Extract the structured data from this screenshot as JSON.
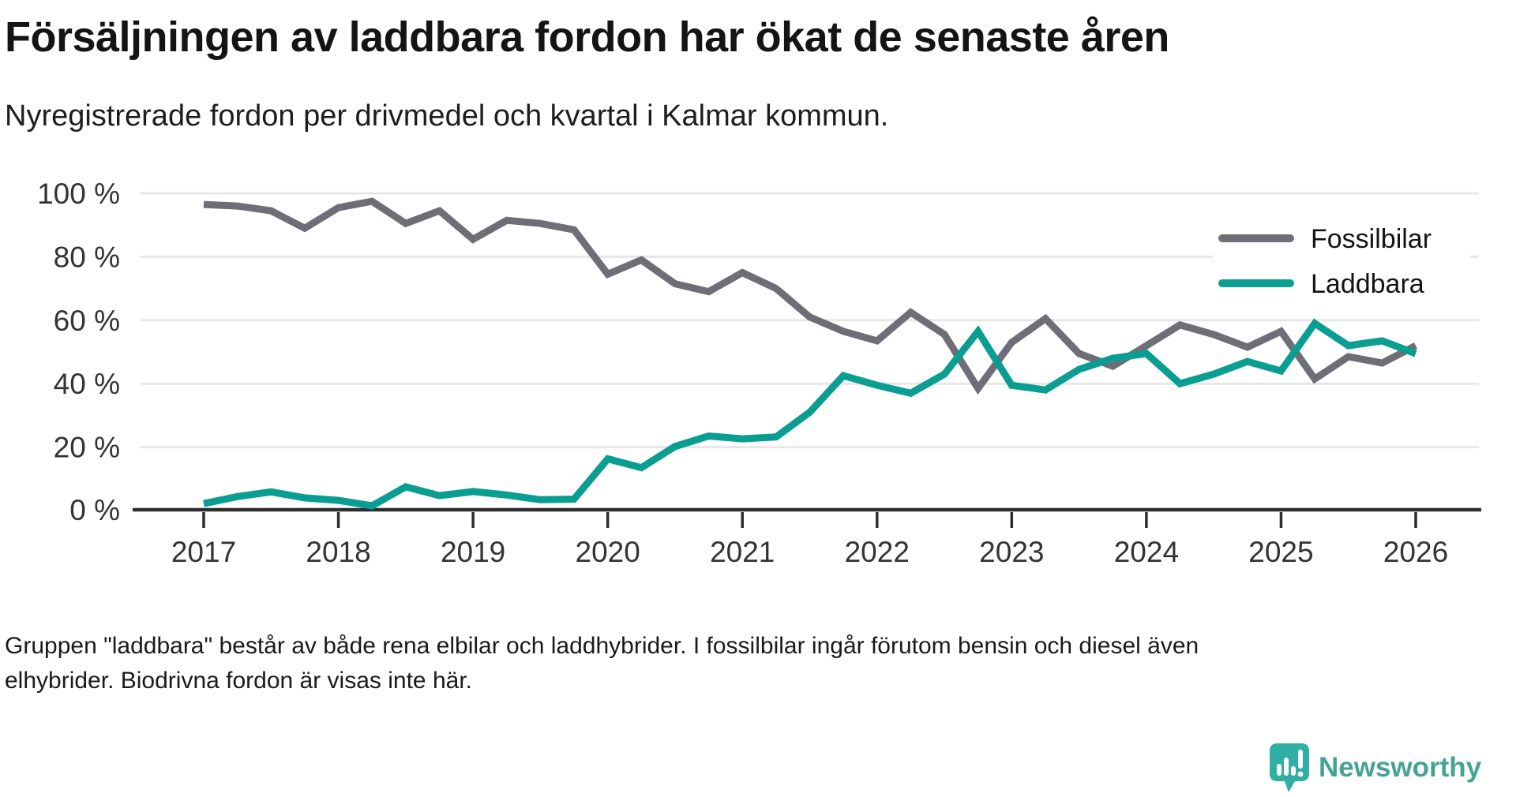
{
  "header": {
    "title": "Försäljningen av laddbara fordon har ökat de senaste åren",
    "subtitle": "Nyregistrerade fordon per drivmedel och kvartal i Kalmar kommun."
  },
  "footnote": {
    "line1": "Gruppen \"laddbara\" består av både rena elbilar och laddhybrider. I fossilbilar ingår förutom bensin och diesel även",
    "line2": "elhybrider. Biodrivna fordon är visas inte här."
  },
  "logo": {
    "text": "Newsworthy",
    "text_color": "#46a295",
    "mark_color": "#2fb0a3"
  },
  "chart_data": {
    "type": "line",
    "unit": "%",
    "title": "Försäljningen av laddbara fordon har ökat de senaste åren",
    "subtitle": "Nyregistrerade fordon per drivmedel och kvartal i Kalmar kommun.",
    "ylim": [
      0,
      100
    ],
    "grid": true,
    "legend_position": "top-right",
    "y_ticks": [
      {
        "label": "100 %",
        "value": 100
      },
      {
        "label": "80 %",
        "value": 80
      },
      {
        "label": "60 %",
        "value": 60
      },
      {
        "label": "40 %",
        "value": 40
      },
      {
        "label": "20 %",
        "value": 20
      },
      {
        "label": "0 %",
        "value": 0
      }
    ],
    "x_ticks": [
      "2017",
      "2018",
      "2019",
      "2020",
      "2021",
      "2022",
      "2023",
      "2024",
      "2025",
      "2026"
    ],
    "x_categories": [
      "2017 Q1",
      "2017 Q2",
      "2017 Q3",
      "2017 Q4",
      "2018 Q1",
      "2018 Q2",
      "2018 Q3",
      "2018 Q4",
      "2019 Q1",
      "2019 Q2",
      "2019 Q3",
      "2019 Q4",
      "2020 Q1",
      "2020 Q2",
      "2020 Q3",
      "2020 Q4",
      "2021 Q1",
      "2021 Q2",
      "2021 Q3",
      "2021 Q4",
      "2022 Q1",
      "2022 Q2",
      "2022 Q3",
      "2022 Q4",
      "2023 Q1",
      "2023 Q2",
      "2023 Q3",
      "2023 Q4",
      "2024 Q1",
      "2024 Q2",
      "2024 Q3",
      "2024 Q4",
      "2025 Q1",
      "2025 Q2",
      "2025 Q3",
      "2025 Q4",
      "2026 Q1"
    ],
    "series": [
      {
        "name": "Fossilbilar",
        "color": "#6e6e76",
        "values": [
          96.5,
          96,
          94.5,
          89,
          95.5,
          97.5,
          90.5,
          94.5,
          85.5,
          91.5,
          90.5,
          88.5,
          74.5,
          79,
          71.5,
          69,
          75,
          70,
          61,
          56.5,
          53.5,
          62.5,
          55.5,
          38.5,
          53,
          60.5,
          49.5,
          45.5,
          52,
          58.5,
          55.5,
          51.5,
          56.5,
          41.5,
          48.5,
          46.5,
          52
        ]
      },
      {
        "name": "Laddbara",
        "color": "#0a9e92",
        "values": [
          2.2,
          4.4,
          5.9,
          4,
          3.2,
          1.5,
          7.5,
          4.7,
          6,
          4.9,
          3.4,
          3.6,
          16.3,
          13.5,
          20.2,
          23.5,
          22.6,
          23.2,
          31,
          42.5,
          39.5,
          37,
          43,
          56.5,
          39.5,
          38,
          44.5,
          48,
          49.5,
          40,
          43,
          47,
          44,
          59,
          52,
          53.5,
          49.5
        ]
      }
    ],
    "colors": {
      "gridline": "#e7e7e7",
      "axis": "#2d2d2d",
      "tick_label": "#333333"
    }
  }
}
